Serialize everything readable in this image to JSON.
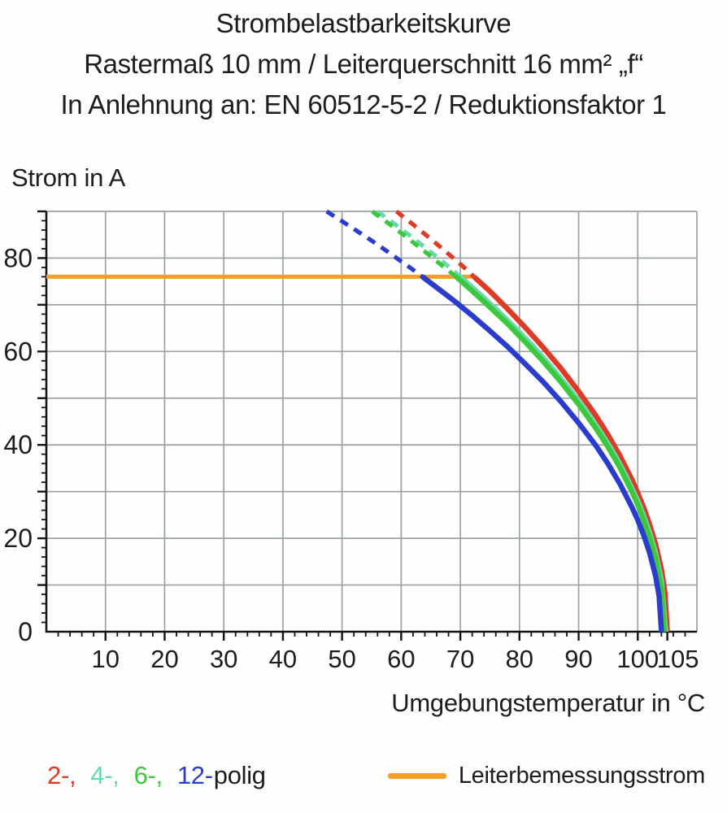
{
  "title": {
    "line1": "Strombelastbarkeitskurve",
    "line2": "Rastermaß 10 mm / Leiterquerschnitt 16 mm² „f“",
    "line3": "In Anlehnung an: EN 60512-5-2 / Reduktionsfaktor 1"
  },
  "colors": {
    "background": "#fefefe",
    "grid": "#9aa3a1",
    "axis": "#141414",
    "text": "#1d1d1b",
    "pole_2": "#de3b26",
    "pole_4": "#68d9ad",
    "pole_6": "#3cc83c",
    "pole_12": "#2a3ccd",
    "rated_current": "#f4a026"
  },
  "legend": {
    "poles": [
      {
        "label": "2-,",
        "color": "#de3b26"
      },
      {
        "label": "4-,",
        "color": "#68d9ad"
      },
      {
        "label": "6-,",
        "color": "#3cc83c"
      },
      {
        "label": "12-",
        "color": "#2a3ccd"
      }
    ],
    "suffix": "polig",
    "rated": {
      "label": "Leiterbemessungsstrom",
      "color": "#f4a026"
    }
  },
  "chart_data": {
    "type": "line",
    "title": "Strombelastbarkeitskurve",
    "xlabel": "Umgebungstemperatur in °C",
    "ylabel": "Strom in A",
    "xlim": [
      0,
      110
    ],
    "ylim": [
      0,
      90
    ],
    "x_gridlines": [
      10,
      20,
      30,
      40,
      50,
      60,
      70,
      80,
      90,
      100,
      110
    ],
    "y_gridlines": [
      10,
      20,
      30,
      40,
      50,
      60,
      70,
      80,
      90
    ],
    "x_tick_labels": [
      10,
      20,
      30,
      40,
      50,
      60,
      70,
      80,
      90,
      100,
      105
    ],
    "y_tick_labels": [
      0,
      20,
      40,
      60,
      80
    ],
    "minor_tick_step": 2,
    "grid": true,
    "legend_position": "bottom",
    "rated_current_A": 76,
    "rated_line": {
      "name": "Leiterbemessungsstrom",
      "color": "#f4a026",
      "points": [
        [
          0,
          76
        ],
        [
          72.3,
          76
        ]
      ]
    },
    "series": [
      {
        "name": "2-polig",
        "color": "#de3b26",
        "max_temperature_C": 105,
        "dashed_points": [
          [
            59.2,
            90
          ],
          [
            62,
            87.2
          ],
          [
            65,
            84.1
          ],
          [
            68,
            80.9
          ],
          [
            71,
            77.6
          ],
          [
            72.3,
            76
          ]
        ],
        "solid_points": [
          [
            72.3,
            76
          ],
          [
            75,
            72.9
          ],
          [
            78,
            69.1
          ],
          [
            81,
            65.1
          ],
          [
            84,
            60.9
          ],
          [
            87,
            56.4
          ],
          [
            90,
            51.5
          ],
          [
            93,
            46.1
          ],
          [
            95,
            42.1
          ],
          [
            97,
            37.6
          ],
          [
            99,
            32.6
          ],
          [
            100,
            29.7
          ],
          [
            101,
            26.6
          ],
          [
            102,
            23.0
          ],
          [
            103,
            18.8
          ],
          [
            104,
            13.3
          ],
          [
            104.6,
            8.4
          ],
          [
            105,
            0
          ]
        ]
      },
      {
        "name": "4-polig",
        "color": "#68d9ad",
        "max_temperature_C": 104.7,
        "dashed_points": [
          [
            56,
            90
          ],
          [
            59,
            87.2
          ],
          [
            62,
            84.3
          ],
          [
            65,
            81.3
          ],
          [
            68,
            78.2
          ],
          [
            70,
            76
          ]
        ],
        "solid_points": [
          [
            70,
            76
          ],
          [
            73,
            72.6
          ],
          [
            76,
            69.1
          ],
          [
            79,
            65.4
          ],
          [
            82,
            61.5
          ],
          [
            85,
            57.2
          ],
          [
            88,
            52.7
          ],
          [
            91,
            47.8
          ],
          [
            94,
            42.2
          ],
          [
            96,
            38.1
          ],
          [
            98,
            33.4
          ],
          [
            100,
            28.0
          ],
          [
            101,
            24.8
          ],
          [
            102,
            21.2
          ],
          [
            103,
            16.8
          ],
          [
            104,
            10.8
          ],
          [
            104.7,
            0
          ]
        ]
      },
      {
        "name": "6-polig",
        "color": "#3cc83c",
        "max_temperature_C": 104.5,
        "dashed_points": [
          [
            55.1,
            90
          ],
          [
            58,
            87.3
          ],
          [
            61,
            84.4
          ],
          [
            64,
            81.4
          ],
          [
            67,
            78.3
          ],
          [
            69.3,
            76
          ]
        ],
        "solid_points": [
          [
            69.3,
            76
          ],
          [
            72,
            73.0
          ],
          [
            75,
            69.5
          ],
          [
            78,
            65.9
          ],
          [
            81,
            62.0
          ],
          [
            84,
            57.9
          ],
          [
            87,
            53.5
          ],
          [
            90,
            48.7
          ],
          [
            93,
            43.4
          ],
          [
            95,
            39.5
          ],
          [
            97,
            35.1
          ],
          [
            99,
            30.0
          ],
          [
            100,
            27.2
          ],
          [
            101,
            23.9
          ],
          [
            102,
            20.2
          ],
          [
            103,
            15.7
          ],
          [
            104,
            9.1
          ],
          [
            104.5,
            0
          ]
        ]
      },
      {
        "name": "12-polig",
        "color": "#2a3ccd",
        "max_temperature_C": 104,
        "dashed_points": [
          [
            47.4,
            90
          ],
          [
            50,
            87.9
          ],
          [
            53,
            85.4
          ],
          [
            56,
            82.9
          ],
          [
            59,
            80.2
          ],
          [
            62,
            77.5
          ],
          [
            63.6,
            76
          ]
        ],
        "solid_points": [
          [
            63.6,
            76
          ],
          [
            66,
            73.7
          ],
          [
            69,
            70.8
          ],
          [
            72,
            67.7
          ],
          [
            75,
            64.4
          ],
          [
            78,
            61.0
          ],
          [
            81,
            57.3
          ],
          [
            84,
            53.5
          ],
          [
            87,
            49.3
          ],
          [
            90,
            44.7
          ],
          [
            93,
            39.7
          ],
          [
            95,
            35.9
          ],
          [
            97,
            31.6
          ],
          [
            99,
            26.7
          ],
          [
            100,
            23.9
          ],
          [
            101,
            20.7
          ],
          [
            102,
            16.9
          ],
          [
            103,
            12.0
          ],
          [
            103.6,
            7.6
          ],
          [
            104,
            0
          ]
        ]
      }
    ]
  }
}
